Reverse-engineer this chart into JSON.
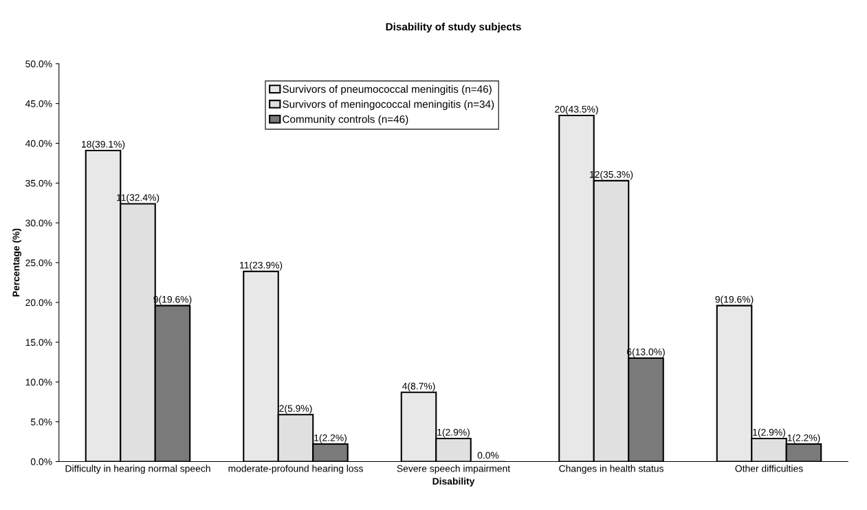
{
  "chart_data": {
    "type": "bar",
    "title": "Disability of study subjects",
    "xlabel": "Disability",
    "ylabel": "Percentage (%)",
    "categories": [
      "Difficulty in hearing normal speech",
      "moderate-profound hearing loss",
      "Severe speech impairment",
      "Changes in health status",
      "Other difficulties"
    ],
    "series": [
      {
        "name": "Survivors of pneumococcal meningitis (n=46)",
        "color": "#e8e8e8",
        "values": [
          39.1,
          23.9,
          8.7,
          43.5,
          19.6
        ],
        "value_labels": [
          "18(39.1%)",
          "11(23.9%)",
          "4(8.7%)",
          "20(43.5%)",
          "9(19.6%)"
        ]
      },
      {
        "name": "Survivors of meningococcal meningitis (n=34)",
        "color": "#e0e0e0",
        "values": [
          32.4,
          5.9,
          2.9,
          35.3,
          2.9
        ],
        "value_labels": [
          "11(32.4%)",
          "2(5.9%)",
          "1(2.9%)",
          "12(35.3%)",
          "1(2.9%)"
        ]
      },
      {
        "name": "Community controls (n=46)",
        "color": "#7a7a7a",
        "values": [
          19.6,
          2.2,
          0.0,
          13.0,
          2.2
        ],
        "value_labels": [
          "9(19.6%)",
          "1(2.2%)",
          "0.0%",
          "6(13.0%)",
          "1(2.2%)"
        ]
      }
    ],
    "ylim": [
      0,
      50
    ],
    "yticks": [
      {
        "value": 0,
        "label": "0.0%"
      },
      {
        "value": 5,
        "label": "5.0%"
      },
      {
        "value": 10,
        "label": "10.0%"
      },
      {
        "value": 15,
        "label": "15.0%"
      },
      {
        "value": 20,
        "label": "20.0%"
      },
      {
        "value": 25,
        "label": "25.0%"
      },
      {
        "value": 30,
        "label": "30.0%"
      },
      {
        "value": 35,
        "label": "35.0%"
      },
      {
        "value": 40,
        "label": "40.0%"
      },
      {
        "value": 45,
        "label": "45.0%"
      },
      {
        "value": 50,
        "label": "50.0%"
      }
    ],
    "grid": false,
    "legend": "top"
  }
}
